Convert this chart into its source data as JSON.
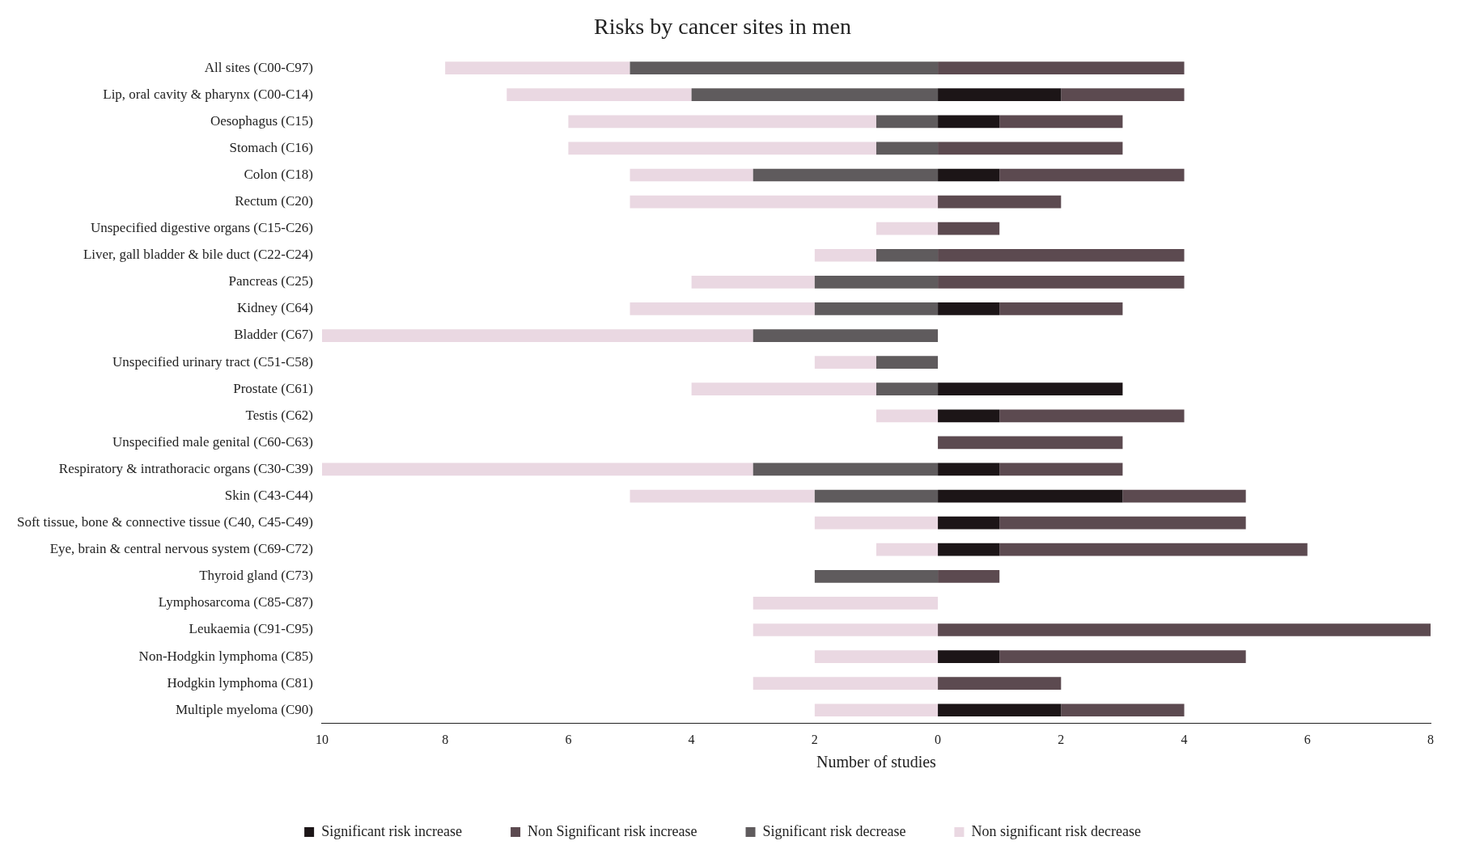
{
  "chart_data": {
    "type": "bar",
    "orientation": "horizontal",
    "stacked": true,
    "title": "Risks by cancer sites in men",
    "xlabel": "Number of studies",
    "categories": [
      "All sites (C00-C97)",
      "Lip, oral cavity & pharynx (C00-C14)",
      "Oesophagus (C15)",
      "Stomach (C16)",
      "Colon (C18)",
      "Rectum (C20)",
      "Unspecified digestive organs (C15-C26)",
      "Liver, gall bladder & bile duct (C22-C24)",
      "Pancreas (C25)",
      "Kidney (C64)",
      "Bladder (C67)",
      "Unspecified urinary tract (C51-C58)",
      "Prostate (C61)",
      "Testis (C62)",
      "Unspecified male genital (C60-C63)",
      "Respiratory & intrathoracic organs (C30-C39)",
      "Skin (C43-C44)",
      "Soft tissue, bone & connective tissue (C40, C45-C49)",
      "Eye, brain & central nervous system (C69-C72)",
      "Thyroid gland (C73)",
      "Lymphosarcoma (C85-C87)",
      "Leukaemia (C91-C95)",
      "Non-Hodgkin lymphoma (C85)",
      "Hodgkin lymphoma (C81)",
      "Multiple myeloma (C90)"
    ],
    "series": [
      {
        "name": "Significant risk increase",
        "color": "#1c1517",
        "values": [
          0,
          2,
          1,
          0,
          1,
          0,
          0,
          0,
          0,
          1,
          0,
          0,
          3,
          1,
          0,
          1,
          3,
          1,
          1,
          0,
          0,
          0,
          1,
          0,
          2
        ]
      },
      {
        "name": "Non Significant risk increase",
        "color": "#5c4a50",
        "values": [
          4,
          2,
          2,
          3,
          3,
          2,
          1,
          4,
          4,
          2,
          0,
          0,
          0,
          3,
          3,
          2,
          2,
          4,
          5,
          1,
          0,
          8,
          4,
          2,
          2
        ]
      },
      {
        "name": "Significant risk decrease",
        "color": "#5f5b5d",
        "values": [
          -5,
          -4,
          -1,
          -1,
          -3,
          0,
          0,
          -1,
          -2,
          -2,
          -3,
          -1,
          -1,
          0,
          0,
          -3,
          -2,
          0,
          0,
          -2,
          0,
          0,
          0,
          0,
          0
        ]
      },
      {
        "name": "Non significant risk decrease",
        "color": "#ead8e2",
        "values": [
          -3,
          -3,
          -5,
          -5,
          -2,
          -5,
          -1,
          -1,
          -2,
          -3,
          -7,
          -1,
          -3,
          -1,
          0,
          -7,
          -3,
          -2,
          -1,
          0,
          -3,
          -3,
          -2,
          -3,
          -2
        ]
      }
    ],
    "xlim": [
      -10,
      8
    ],
    "xticks": [
      {
        "value": -10,
        "label": "10"
      },
      {
        "value": -8,
        "label": "8"
      },
      {
        "value": -6,
        "label": "6"
      },
      {
        "value": -4,
        "label": "4"
      },
      {
        "value": -2,
        "label": "2"
      },
      0,
      2,
      4,
      6,
      8
    ],
    "grid": false,
    "legend": "bottom"
  }
}
